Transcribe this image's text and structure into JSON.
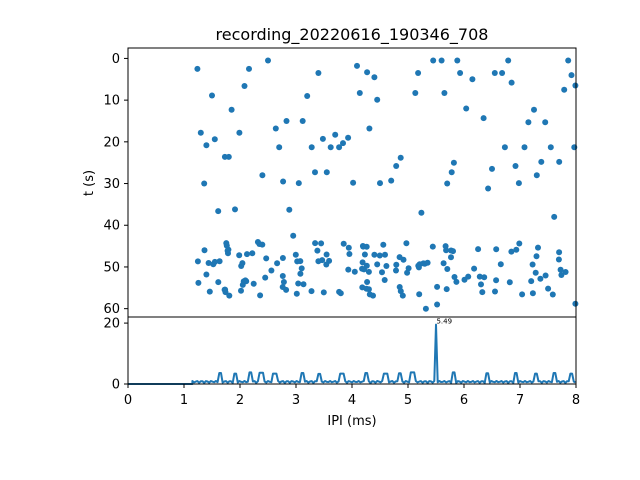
{
  "colors": {
    "series": "#1f77b4",
    "axis": "#000000",
    "background": "#ffffff"
  },
  "chart_data": [
    {
      "type": "scatter",
      "title": "recording_20220616_190346_708",
      "xlabel": "",
      "ylabel": "t (s)",
      "xlim": [
        0,
        8
      ],
      "ylim": [
        62,
        -2.5
      ],
      "y_inverted": true,
      "x_shared_with_panel_below": true,
      "yticks": [
        "0",
        "10",
        "20",
        "30",
        "40",
        "50",
        "60"
      ],
      "grid": false,
      "points": [
        [
          1.24,
          2.5
        ],
        [
          1.3,
          17.8
        ],
        [
          1.36,
          30
        ],
        [
          1.4,
          20.8
        ],
        [
          1.46,
          55.9
        ],
        [
          1.5,
          8.9
        ],
        [
          1.55,
          19.4
        ],
        [
          1.61,
          36.6
        ],
        [
          1.73,
          23.6
        ],
        [
          1.8,
          23.6
        ],
        [
          1.85,
          12.3
        ],
        [
          1.91,
          36.2
        ],
        [
          1.99,
          17.8
        ],
        [
          2.08,
          6.6
        ],
        [
          2.16,
          2.5
        ],
        [
          2.22,
          46.7
        ],
        [
          2.4,
          28
        ],
        [
          2.5,
          0.5
        ],
        [
          2.64,
          16.8
        ],
        [
          2.7,
          21.3
        ],
        [
          2.77,
          29.5
        ],
        [
          2.83,
          15
        ],
        [
          2.88,
          36.3
        ],
        [
          2.95,
          42.5
        ],
        [
          3.05,
          29.9
        ],
        [
          3.12,
          15
        ],
        [
          3.2,
          9
        ],
        [
          3.28,
          21.3
        ],
        [
          3.34,
          27.3
        ],
        [
          3.4,
          3.5
        ],
        [
          3.48,
          19.3
        ],
        [
          3.55,
          27.3
        ],
        [
          3.62,
          21.3
        ],
        [
          3.7,
          18.3
        ],
        [
          3.77,
          21.3
        ],
        [
          3.84,
          20.3
        ],
        [
          3.93,
          19
        ],
        [
          4.02,
          29.8
        ],
        [
          4.09,
          1.8
        ],
        [
          4.14,
          8.3
        ],
        [
          4.27,
          3.3
        ],
        [
          4.31,
          16.8
        ],
        [
          4.4,
          4.5
        ],
        [
          4.45,
          9.9
        ],
        [
          4.5,
          29.9
        ],
        [
          4.7,
          29.3
        ],
        [
          4.79,
          25.8
        ],
        [
          4.87,
          23.8
        ],
        [
          5.13,
          8.3
        ],
        [
          5.18,
          3.5
        ],
        [
          5.24,
          37
        ],
        [
          5.32,
          60
        ],
        [
          5.45,
          0.5
        ],
        [
          5.52,
          59
        ],
        [
          5.6,
          0.5
        ],
        [
          5.65,
          8.3
        ],
        [
          5.7,
          30
        ],
        [
          5.78,
          27.3
        ],
        [
          5.82,
          25
        ],
        [
          5.88,
          0.5
        ],
        [
          5.93,
          3.5
        ],
        [
          6.04,
          12
        ],
        [
          6.15,
          5
        ],
        [
          6.35,
          14.3
        ],
        [
          6.43,
          31.2
        ],
        [
          6.5,
          26.5
        ],
        [
          6.55,
          3.5
        ],
        [
          6.68,
          3.5
        ],
        [
          6.73,
          21.3
        ],
        [
          6.79,
          0.5
        ],
        [
          6.85,
          5.8
        ],
        [
          6.92,
          25.8
        ],
        [
          6.98,
          29.9
        ],
        [
          7.08,
          21.3
        ],
        [
          7.15,
          15.3
        ],
        [
          7.25,
          12.3
        ],
        [
          7.3,
          28
        ],
        [
          7.38,
          24.8
        ],
        [
          7.45,
          15.3
        ],
        [
          7.55,
          21.3
        ],
        [
          7.61,
          38
        ],
        [
          7.7,
          24.8
        ],
        [
          7.79,
          7.5
        ],
        [
          7.86,
          0.5
        ],
        [
          7.92,
          4
        ],
        [
          7.97,
          21.3
        ],
        [
          7.99,
          6.5
        ],
        [
          7.99,
          58.8
        ]
      ]
    },
    {
      "type": "line",
      "title": "",
      "xlabel": "IPI (ms)",
      "ylabel": "",
      "xlim": [
        0,
        8
      ],
      "ylim": [
        0,
        22
      ],
      "xticks": [
        "0",
        "1",
        "2",
        "3",
        "4",
        "5",
        "6",
        "7",
        "8"
      ],
      "yticks": [
        "0",
        "20"
      ],
      "grid": false,
      "annotations": [
        {
          "x": 5.49,
          "y": 19.5,
          "text": "5.49"
        }
      ],
      "peak": {
        "x": 5.49,
        "y": 19.5
      },
      "baseline_start": 1.15,
      "mid_bumps": [
        [
          1.65,
          3.6
        ],
        [
          1.92,
          3.4
        ],
        [
          2.18,
          3.8
        ],
        [
          2.38,
          3.7
        ],
        [
          2.62,
          3.4
        ],
        [
          3.12,
          3.6
        ],
        [
          3.42,
          3.3
        ],
        [
          3.82,
          3.4
        ],
        [
          4.25,
          3.6
        ],
        [
          4.6,
          3.4
        ],
        [
          4.85,
          3.5
        ],
        [
          5.08,
          3.8
        ],
        [
          5.82,
          3.8
        ],
        [
          6.42,
          3.5
        ],
        [
          6.92,
          3.6
        ],
        [
          7.28,
          3.4
        ],
        [
          7.62,
          3.6
        ],
        [
          7.92,
          3.4
        ]
      ]
    }
  ]
}
